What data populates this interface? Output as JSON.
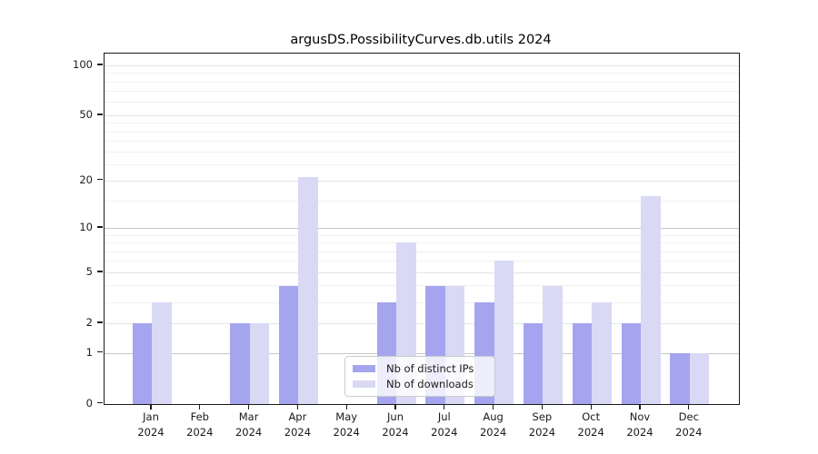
{
  "chart_data": {
    "type": "bar",
    "title": "argusDS.PossibilityCurves.db.utils 2024",
    "categories": [
      "Jan",
      "Feb",
      "Mar",
      "Apr",
      "May",
      "Jun",
      "Jul",
      "Aug",
      "Sep",
      "Oct",
      "Nov",
      "Dec"
    ],
    "x_year_label": "2024",
    "series": [
      {
        "name": "Nb of distinct IPs",
        "color": "#a5a5ef",
        "values": [
          2,
          0,
          2,
          4,
          0,
          3,
          4,
          3,
          2,
          2,
          2,
          1
        ]
      },
      {
        "name": "Nb of downloads",
        "color": "#d9d9f6",
        "values": [
          3,
          0,
          2,
          21,
          0,
          8,
          4,
          6,
          4,
          3,
          16,
          1
        ]
      }
    ],
    "xlabel": "",
    "ylabel": "",
    "y_axis": {
      "ticks": [
        0,
        1,
        2,
        5,
        10,
        20,
        50,
        100
      ],
      "scale": "log10(1+y)",
      "range": [
        0,
        117
      ]
    },
    "y_major_emphasis": [
      1,
      10
    ],
    "y_minor_gridlines": [
      3,
      4,
      6,
      7,
      8,
      9,
      15,
      25,
      30,
      35,
      40,
      45,
      60,
      70,
      80,
      90
    ],
    "grid": true,
    "legend": {
      "position": "lower-center-inside",
      "entries": [
        "Nb of distinct IPs",
        "Nb of downloads"
      ]
    }
  },
  "colors": {
    "grid_major": "#c6c6c6",
    "grid_mid": "#e4e4e4",
    "grid_minor": "#f1f1f1",
    "frame": "#1a1a1a",
    "text": "#1a1a1a"
  }
}
